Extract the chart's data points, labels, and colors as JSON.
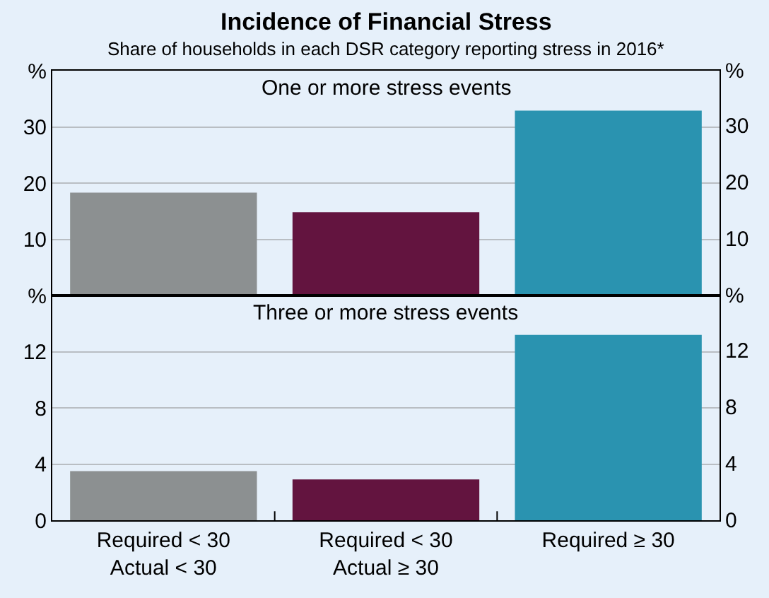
{
  "chart_data": [
    {
      "type": "bar",
      "title": "One or more stress events",
      "annotations": [
        "Incidence of Financial Stress",
        "Share of households in each DSR category reporting stress in 2016*"
      ],
      "categories": [
        null,
        null,
        null
      ],
      "values": [
        18.3,
        14.8,
        32.9
      ],
      "colors": [
        "#8c9091",
        "#63143f",
        "#2a93b0"
      ],
      "ylim": [
        0,
        40
      ],
      "yticks": [
        10,
        20,
        30,
        {
          "value": 40,
          "label": "%"
        }
      ],
      "y2lim": [
        0,
        40
      ],
      "y2ticks": [
        10,
        20,
        30,
        {
          "value": 40,
          "label": "%"
        }
      ],
      "grid": "y",
      "tick_labels": "y"
    },
    {
      "type": "bar",
      "title": "Three or more stress events",
      "categories": [
        "Required < 30\nActual < 30",
        "Required < 30\nActual ≥ 30",
        "Required ≥ 30"
      ],
      "values": [
        3.5,
        2.9,
        13.2
      ],
      "colors": [
        "#8c9091",
        "#63143f",
        "#2a93b0"
      ],
      "ylim": [
        0,
        16
      ],
      "yticks": [
        0,
        4,
        8,
        12,
        {
          "value": 16,
          "label": "%"
        }
      ],
      "y2lim": [
        0,
        16
      ],
      "y2ticks": [
        0,
        4,
        8,
        12,
        {
          "value": 16,
          "label": "%"
        }
      ],
      "grid": "y"
    }
  ]
}
